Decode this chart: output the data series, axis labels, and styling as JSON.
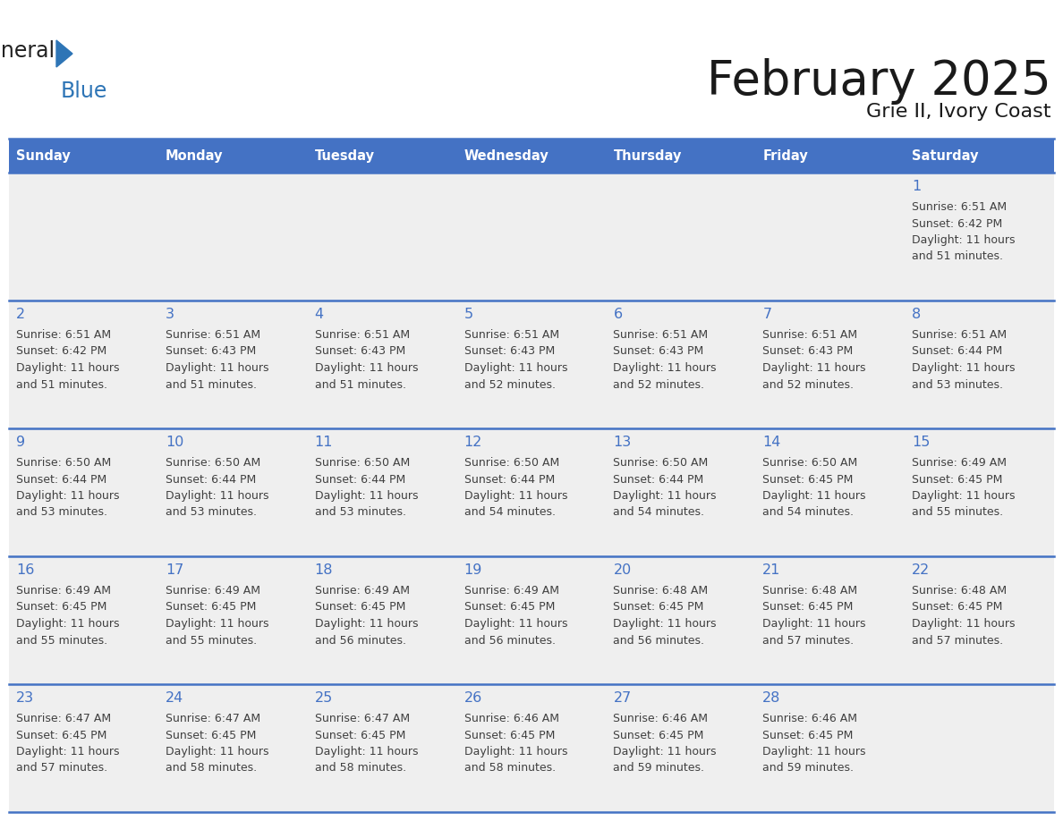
{
  "title": "February 2025",
  "subtitle": "Grie II, Ivory Coast",
  "days_of_week": [
    "Sunday",
    "Monday",
    "Tuesday",
    "Wednesday",
    "Thursday",
    "Friday",
    "Saturday"
  ],
  "header_bg": "#4472C4",
  "header_text": "#FFFFFF",
  "cell_bg": "#EFEFEF",
  "line_color": "#4472C4",
  "day_number_color": "#4472C4",
  "text_color": "#404040",
  "logo_general_color": "#222222",
  "logo_blue_color": "#2E75B6",
  "weeks": [
    [
      {
        "day": null,
        "sunrise": null,
        "sunset": null,
        "daylight": null
      },
      {
        "day": null,
        "sunrise": null,
        "sunset": null,
        "daylight": null
      },
      {
        "day": null,
        "sunrise": null,
        "sunset": null,
        "daylight": null
      },
      {
        "day": null,
        "sunrise": null,
        "sunset": null,
        "daylight": null
      },
      {
        "day": null,
        "sunrise": null,
        "sunset": null,
        "daylight": null
      },
      {
        "day": null,
        "sunrise": null,
        "sunset": null,
        "daylight": null
      },
      {
        "day": 1,
        "sunrise": "6:51 AM",
        "sunset": "6:42 PM",
        "daylight": "11 hours and 51 minutes."
      }
    ],
    [
      {
        "day": 2,
        "sunrise": "6:51 AM",
        "sunset": "6:42 PM",
        "daylight": "11 hours and 51 minutes."
      },
      {
        "day": 3,
        "sunrise": "6:51 AM",
        "sunset": "6:43 PM",
        "daylight": "11 hours and 51 minutes."
      },
      {
        "day": 4,
        "sunrise": "6:51 AM",
        "sunset": "6:43 PM",
        "daylight": "11 hours and 51 minutes."
      },
      {
        "day": 5,
        "sunrise": "6:51 AM",
        "sunset": "6:43 PM",
        "daylight": "11 hours and 52 minutes."
      },
      {
        "day": 6,
        "sunrise": "6:51 AM",
        "sunset": "6:43 PM",
        "daylight": "11 hours and 52 minutes."
      },
      {
        "day": 7,
        "sunrise": "6:51 AM",
        "sunset": "6:43 PM",
        "daylight": "11 hours and 52 minutes."
      },
      {
        "day": 8,
        "sunrise": "6:51 AM",
        "sunset": "6:44 PM",
        "daylight": "11 hours and 53 minutes."
      }
    ],
    [
      {
        "day": 9,
        "sunrise": "6:50 AM",
        "sunset": "6:44 PM",
        "daylight": "11 hours and 53 minutes."
      },
      {
        "day": 10,
        "sunrise": "6:50 AM",
        "sunset": "6:44 PM",
        "daylight": "11 hours and 53 minutes."
      },
      {
        "day": 11,
        "sunrise": "6:50 AM",
        "sunset": "6:44 PM",
        "daylight": "11 hours and 53 minutes."
      },
      {
        "day": 12,
        "sunrise": "6:50 AM",
        "sunset": "6:44 PM",
        "daylight": "11 hours and 54 minutes."
      },
      {
        "day": 13,
        "sunrise": "6:50 AM",
        "sunset": "6:44 PM",
        "daylight": "11 hours and 54 minutes."
      },
      {
        "day": 14,
        "sunrise": "6:50 AM",
        "sunset": "6:45 PM",
        "daylight": "11 hours and 54 minutes."
      },
      {
        "day": 15,
        "sunrise": "6:49 AM",
        "sunset": "6:45 PM",
        "daylight": "11 hours and 55 minutes."
      }
    ],
    [
      {
        "day": 16,
        "sunrise": "6:49 AM",
        "sunset": "6:45 PM",
        "daylight": "11 hours and 55 minutes."
      },
      {
        "day": 17,
        "sunrise": "6:49 AM",
        "sunset": "6:45 PM",
        "daylight": "11 hours and 55 minutes."
      },
      {
        "day": 18,
        "sunrise": "6:49 AM",
        "sunset": "6:45 PM",
        "daylight": "11 hours and 56 minutes."
      },
      {
        "day": 19,
        "sunrise": "6:49 AM",
        "sunset": "6:45 PM",
        "daylight": "11 hours and 56 minutes."
      },
      {
        "day": 20,
        "sunrise": "6:48 AM",
        "sunset": "6:45 PM",
        "daylight": "11 hours and 56 minutes."
      },
      {
        "day": 21,
        "sunrise": "6:48 AM",
        "sunset": "6:45 PM",
        "daylight": "11 hours and 57 minutes."
      },
      {
        "day": 22,
        "sunrise": "6:48 AM",
        "sunset": "6:45 PM",
        "daylight": "11 hours and 57 minutes."
      }
    ],
    [
      {
        "day": 23,
        "sunrise": "6:47 AM",
        "sunset": "6:45 PM",
        "daylight": "11 hours and 57 minutes."
      },
      {
        "day": 24,
        "sunrise": "6:47 AM",
        "sunset": "6:45 PM",
        "daylight": "11 hours and 58 minutes."
      },
      {
        "day": 25,
        "sunrise": "6:47 AM",
        "sunset": "6:45 PM",
        "daylight": "11 hours and 58 minutes."
      },
      {
        "day": 26,
        "sunrise": "6:46 AM",
        "sunset": "6:45 PM",
        "daylight": "11 hours and 58 minutes."
      },
      {
        "day": 27,
        "sunrise": "6:46 AM",
        "sunset": "6:45 PM",
        "daylight": "11 hours and 59 minutes."
      },
      {
        "day": 28,
        "sunrise": "6:46 AM",
        "sunset": "6:45 PM",
        "daylight": "11 hours and 59 minutes."
      },
      {
        "day": null,
        "sunrise": null,
        "sunset": null,
        "daylight": null
      }
    ]
  ]
}
